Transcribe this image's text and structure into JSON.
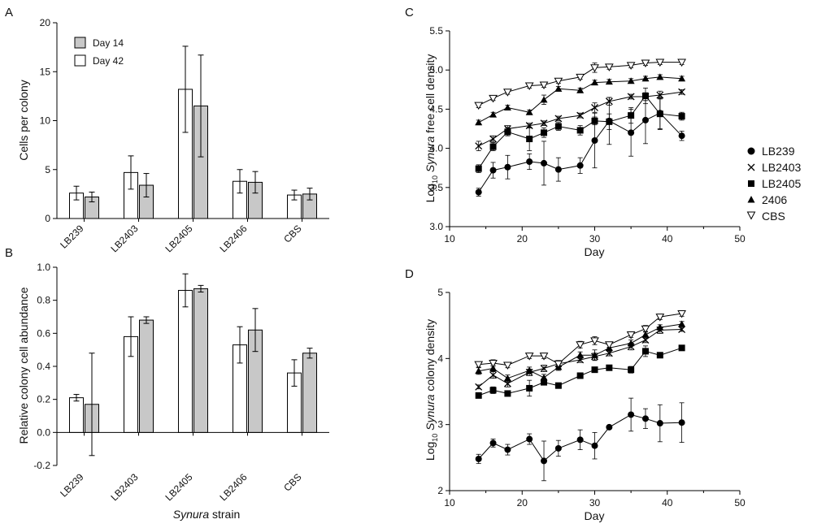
{
  "colors": {
    "axis": "#000000",
    "bar_day14": "#c8c8c8",
    "bar_day42": "#ffffff",
    "line": "#000000"
  },
  "chart_data": [
    {
      "panel": "A",
      "type": "bar",
      "ylabel": "Cells per colony",
      "xlabel": "",
      "ylim": [
        0,
        20
      ],
      "yticks": [
        0,
        5,
        10,
        15,
        20
      ],
      "ytick_labels": [
        "0",
        "5",
        "10",
        "15",
        "20"
      ],
      "categories": [
        "LB239",
        "LB2403",
        "LB2405",
        "LB2406",
        "CBS"
      ],
      "legend": {
        "position": "top-left",
        "entries": [
          "Day 14",
          "Day 42"
        ]
      },
      "series": [
        {
          "name": "Day 42",
          "values": [
            2.6,
            4.7,
            13.2,
            3.8,
            2.4
          ],
          "errors": [
            0.7,
            1.7,
            4.4,
            1.2,
            0.5
          ]
        },
        {
          "name": "Day 14",
          "values": [
            2.2,
            3.4,
            11.5,
            3.7,
            2.5
          ],
          "errors": [
            0.5,
            1.2,
            5.2,
            1.1,
            0.6
          ]
        }
      ]
    },
    {
      "panel": "B",
      "type": "bar",
      "ylabel": "Relative colony cell abundance",
      "xlabel_italic": "Synura",
      "xlabel_rest": " strain",
      "ylim": [
        -0.2,
        1.0
      ],
      "yticks": [
        -0.2,
        0,
        0.2,
        0.4,
        0.6,
        0.8,
        1.0
      ],
      "ytick_labels": [
        "-0.2",
        "0.0",
        "0.2",
        "0.4",
        "0.6",
        "0.8",
        "1.0"
      ],
      "categories": [
        "LB239",
        "LB2403",
        "LB2405",
        "LB2406",
        "CBS"
      ],
      "series": [
        {
          "name": "Day 42",
          "values": [
            0.21,
            0.58,
            0.86,
            0.53,
            0.36
          ],
          "errors": [
            0.02,
            0.12,
            0.1,
            0.11,
            0.08
          ]
        },
        {
          "name": "Day 14",
          "values": [
            0.17,
            0.68,
            0.87,
            0.62,
            0.48
          ],
          "errors": [
            0.31,
            0.02,
            0.02,
            0.13,
            0.03
          ]
        }
      ]
    },
    {
      "panel": "C",
      "type": "line",
      "xlabel": "Day",
      "ylabel_pre": "Log",
      "ylabel_sub": "10",
      "ylabel_italic": " Synura",
      "ylabel_post": " free cell density",
      "xlim": [
        10,
        50
      ],
      "ylim": [
        3.0,
        5.5
      ],
      "xticks": [
        10,
        20,
        30,
        40,
        50
      ],
      "xtick_labels": [
        "10",
        "20",
        "30",
        "40",
        "50"
      ],
      "yticks": [
        3.0,
        3.5,
        4.0,
        4.5,
        5.0,
        5.5
      ],
      "ytick_labels": [
        "3.0",
        "3.5",
        "4.0",
        "4.5",
        "5.0",
        "5.5"
      ],
      "legend": {
        "position": "right"
      },
      "series": [
        {
          "name": "LB239",
          "marker": "circle",
          "x": [
            14,
            16,
            18,
            21,
            23,
            25,
            28,
            30,
            32,
            35,
            37,
            39,
            42
          ],
          "y": [
            3.44,
            3.72,
            3.76,
            3.83,
            3.81,
            3.73,
            3.78,
            4.1,
            4.35,
            4.2,
            4.36,
            4.45,
            4.16
          ],
          "errors": [
            0.05,
            0.1,
            0.15,
            0.1,
            0.28,
            0.15,
            0.1,
            0.35,
            0.3,
            0.3,
            0.3,
            0.2,
            0.06
          ]
        },
        {
          "name": "LB2403",
          "marker": "cross",
          "x": [
            14,
            16,
            18,
            21,
            23,
            25,
            28,
            30,
            32,
            35,
            37,
            39,
            42
          ],
          "y": [
            4.03,
            4.12,
            4.25,
            4.29,
            4.32,
            4.38,
            4.42,
            4.52,
            4.6,
            4.66,
            4.66,
            4.68,
            4.72
          ],
          "errors": [
            0.06,
            0.04,
            0.04,
            0.03,
            0.03,
            0.03,
            0.03,
            0.06,
            0.05,
            0.03,
            0.05,
            0.05,
            0.03
          ]
        },
        {
          "name": "LB2405",
          "marker": "square",
          "x": [
            14,
            16,
            18,
            21,
            23,
            25,
            28,
            30,
            32,
            35,
            37,
            39,
            42
          ],
          "y": [
            3.74,
            4.02,
            4.21,
            4.12,
            4.2,
            4.28,
            4.23,
            4.35,
            4.34,
            4.42,
            4.67,
            4.44,
            4.41
          ],
          "errors": [
            0.05,
            0.05,
            0.05,
            0.15,
            0.06,
            0.05,
            0.06,
            0.05,
            0.1,
            0.1,
            0.1,
            0.2,
            0.05
          ]
        },
        {
          "name": "2406",
          "marker": "triangle",
          "x": [
            14,
            16,
            18,
            21,
            23,
            25,
            28,
            30,
            32,
            35,
            37,
            39,
            42
          ],
          "y": [
            4.33,
            4.43,
            4.52,
            4.46,
            4.62,
            4.76,
            4.74,
            4.84,
            4.85,
            4.86,
            4.89,
            4.91,
            4.89
          ],
          "errors": [
            0.03,
            0.03,
            0.03,
            0.03,
            0.06,
            0.03,
            0.03,
            0.03,
            0.03,
            0.03,
            0.03,
            0.03,
            0.03
          ]
        },
        {
          "name": "CBS",
          "marker": "triangle-down",
          "x": [
            14,
            16,
            18,
            21,
            23,
            25,
            28,
            30,
            32,
            35,
            37,
            39,
            42
          ],
          "y": [
            4.55,
            4.64,
            4.72,
            4.8,
            4.81,
            4.86,
            4.91,
            5.03,
            5.04,
            5.06,
            5.09,
            5.1,
            5.1
          ],
          "errors": [
            0.03,
            0.03,
            0.03,
            0.03,
            0.03,
            0.03,
            0.03,
            0.06,
            0.03,
            0.03,
            0.03,
            0.03,
            0.03
          ]
        }
      ]
    },
    {
      "panel": "D",
      "type": "line",
      "xlabel": "Day",
      "ylabel_pre": "Log",
      "ylabel_sub": "10",
      "ylabel_italic": " Synura",
      "ylabel_post": " colony density",
      "xlim": [
        10,
        50
      ],
      "ylim": [
        2,
        5
      ],
      "xticks": [
        10,
        20,
        30,
        40,
        50
      ],
      "xtick_labels": [
        "10",
        "20",
        "30",
        "40",
        "50"
      ],
      "yticks": [
        2,
        3,
        4,
        5
      ],
      "ytick_labels": [
        "2",
        "3",
        "4",
        "5"
      ],
      "series": [
        {
          "name": "LB239",
          "marker": "circle",
          "x": [
            14,
            16,
            18,
            21,
            23,
            25,
            28,
            30,
            32,
            35,
            37,
            39,
            42
          ],
          "y": [
            2.48,
            2.72,
            2.62,
            2.78,
            2.45,
            2.64,
            2.77,
            2.68,
            2.96,
            3.15,
            3.09,
            3.02,
            3.03
          ],
          "errors": [
            0.07,
            0.06,
            0.08,
            0.08,
            0.3,
            0.12,
            0.15,
            0.2,
            0.02,
            0.25,
            0.15,
            0.28,
            0.3
          ]
        },
        {
          "name": "LB2403",
          "marker": "cross",
          "x": [
            14,
            16,
            18,
            21,
            23,
            25,
            28,
            30,
            32,
            35,
            37,
            39,
            42
          ],
          "y": [
            3.57,
            3.75,
            3.62,
            3.79,
            3.85,
            3.92,
            3.98,
            4.03,
            4.08,
            4.18,
            4.28,
            4.43,
            4.44
          ],
          "errors": [
            0.03,
            0.05,
            0.05,
            0.05,
            0.05,
            0.04,
            0.04,
            0.05,
            0.04,
            0.05,
            0.04,
            0.05,
            0.03
          ]
        },
        {
          "name": "LB2405",
          "marker": "square",
          "x": [
            14,
            16,
            18,
            21,
            23,
            25,
            28,
            30,
            32,
            35,
            37,
            39,
            42
          ],
          "y": [
            3.44,
            3.52,
            3.47,
            3.55,
            3.64,
            3.59,
            3.74,
            3.83,
            3.86,
            3.83,
            4.11,
            4.05,
            4.16
          ],
          "errors": [
            0.03,
            0.05,
            0.04,
            0.12,
            0.03,
            0.03,
            0.03,
            0.03,
            0.03,
            0.05,
            0.08,
            0.03,
            0.03
          ]
        },
        {
          "name": "2406",
          "marker": "triangle",
          "x": [
            14,
            16,
            18,
            21,
            23,
            25,
            28,
            30,
            32,
            35,
            37,
            39,
            42
          ],
          "y": [
            3.81,
            3.85,
            3.7,
            3.82,
            3.71,
            3.87,
            4.05,
            4.05,
            4.16,
            4.23,
            4.36,
            4.47,
            4.52
          ],
          "errors": [
            0.05,
            0.05,
            0.05,
            0.05,
            0.05,
            0.05,
            0.05,
            0.08,
            0.05,
            0.05,
            0.05,
            0.04,
            0.04
          ]
        },
        {
          "name": "CBS",
          "marker": "triangle-down",
          "x": [
            14,
            16,
            18,
            21,
            23,
            25,
            28,
            30,
            32,
            35,
            37,
            39,
            42
          ],
          "y": [
            3.91,
            3.93,
            3.9,
            4.04,
            4.04,
            3.92,
            4.21,
            4.27,
            4.21,
            4.36,
            4.45,
            4.63,
            4.68
          ],
          "errors": [
            0.04,
            0.05,
            0.04,
            0.04,
            0.04,
            0.05,
            0.05,
            0.06,
            0.04,
            0.04,
            0.05,
            0.04,
            0.04
          ]
        }
      ]
    }
  ]
}
